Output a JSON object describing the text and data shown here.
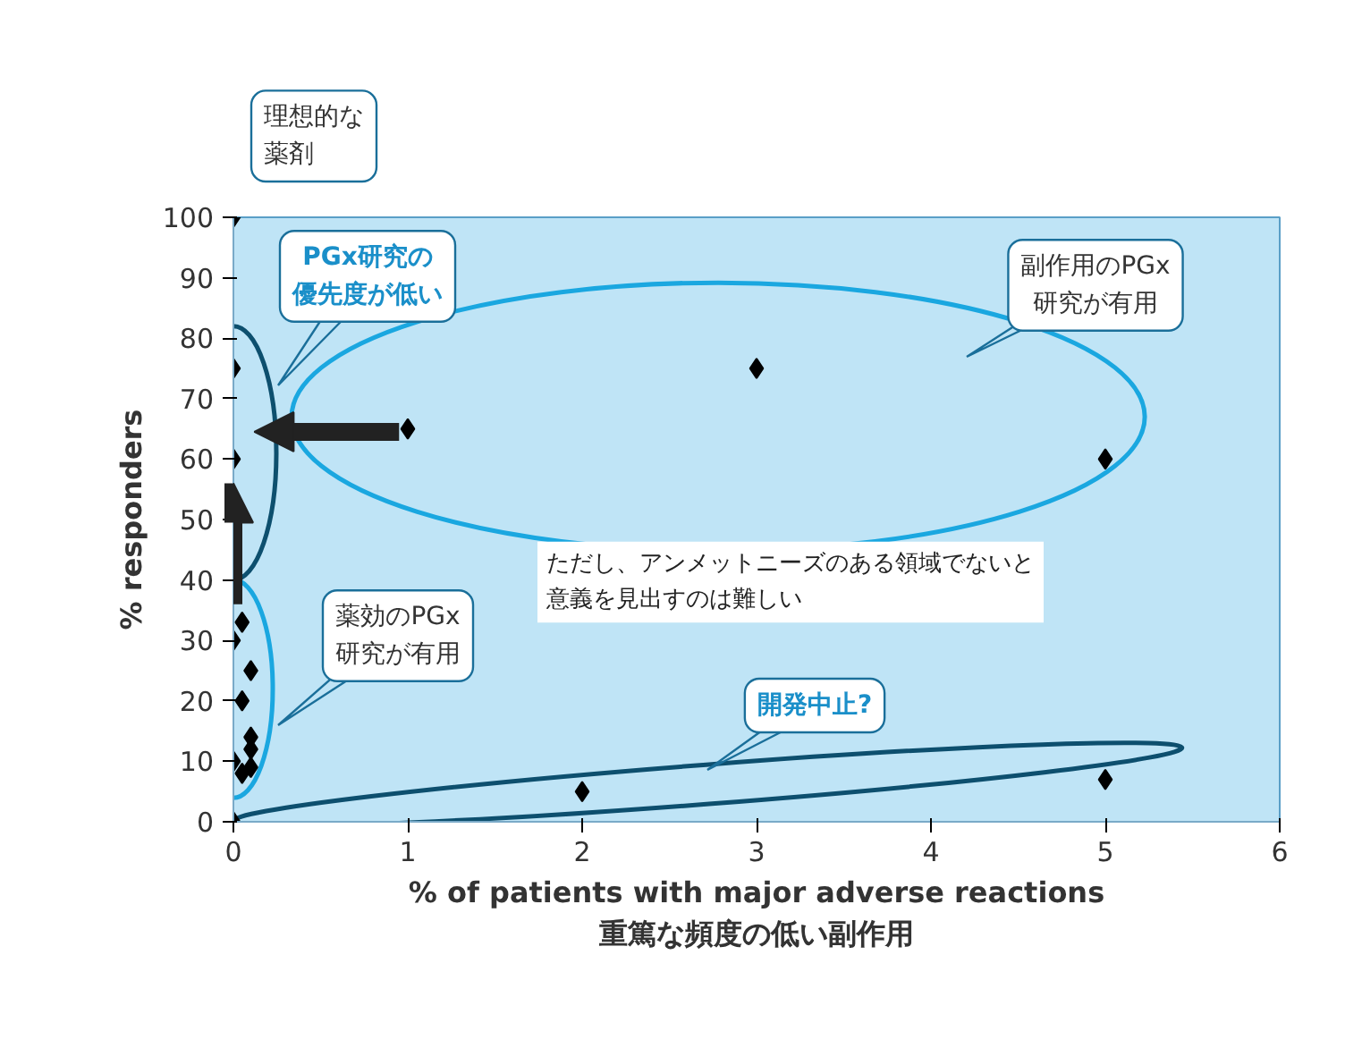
{
  "chart_data": {
    "type": "scatter",
    "xlabel": "% of patients with major adverse reactions\n重篤な頻度の低い副作用",
    "ylabel": "% responders",
    "x": [
      0,
      0,
      0,
      1,
      3,
      5,
      2,
      5,
      0,
      0.05,
      0,
      0.1,
      0.05,
      0.1,
      0.1,
      0,
      0.05,
      0.1
    ],
    "values": [
      100,
      75,
      60,
      65,
      75,
      60,
      5,
      7,
      0,
      33,
      30,
      25,
      20,
      14,
      12,
      10,
      8,
      9
    ],
    "color": "#000000",
    "marker": "diamond",
    "grid": false,
    "xlim": [
      0,
      6
    ],
    "ylim": [
      0,
      100
    ],
    "xticks": [
      0,
      1,
      2,
      3,
      4,
      5,
      6
    ],
    "yticks": [
      0,
      10,
      20,
      30,
      40,
      50,
      60,
      70,
      80,
      90,
      100
    ],
    "annotations": [
      "理想的な薬剤",
      "PGx研究の優先度が低い",
      "副作用のPGx研究が有用",
      "薬効のPGx研究が有用",
      "開発中止?",
      "ただし、アンメットニーズのある領域でないと意義を見出すのは難しい"
    ]
  }
}
